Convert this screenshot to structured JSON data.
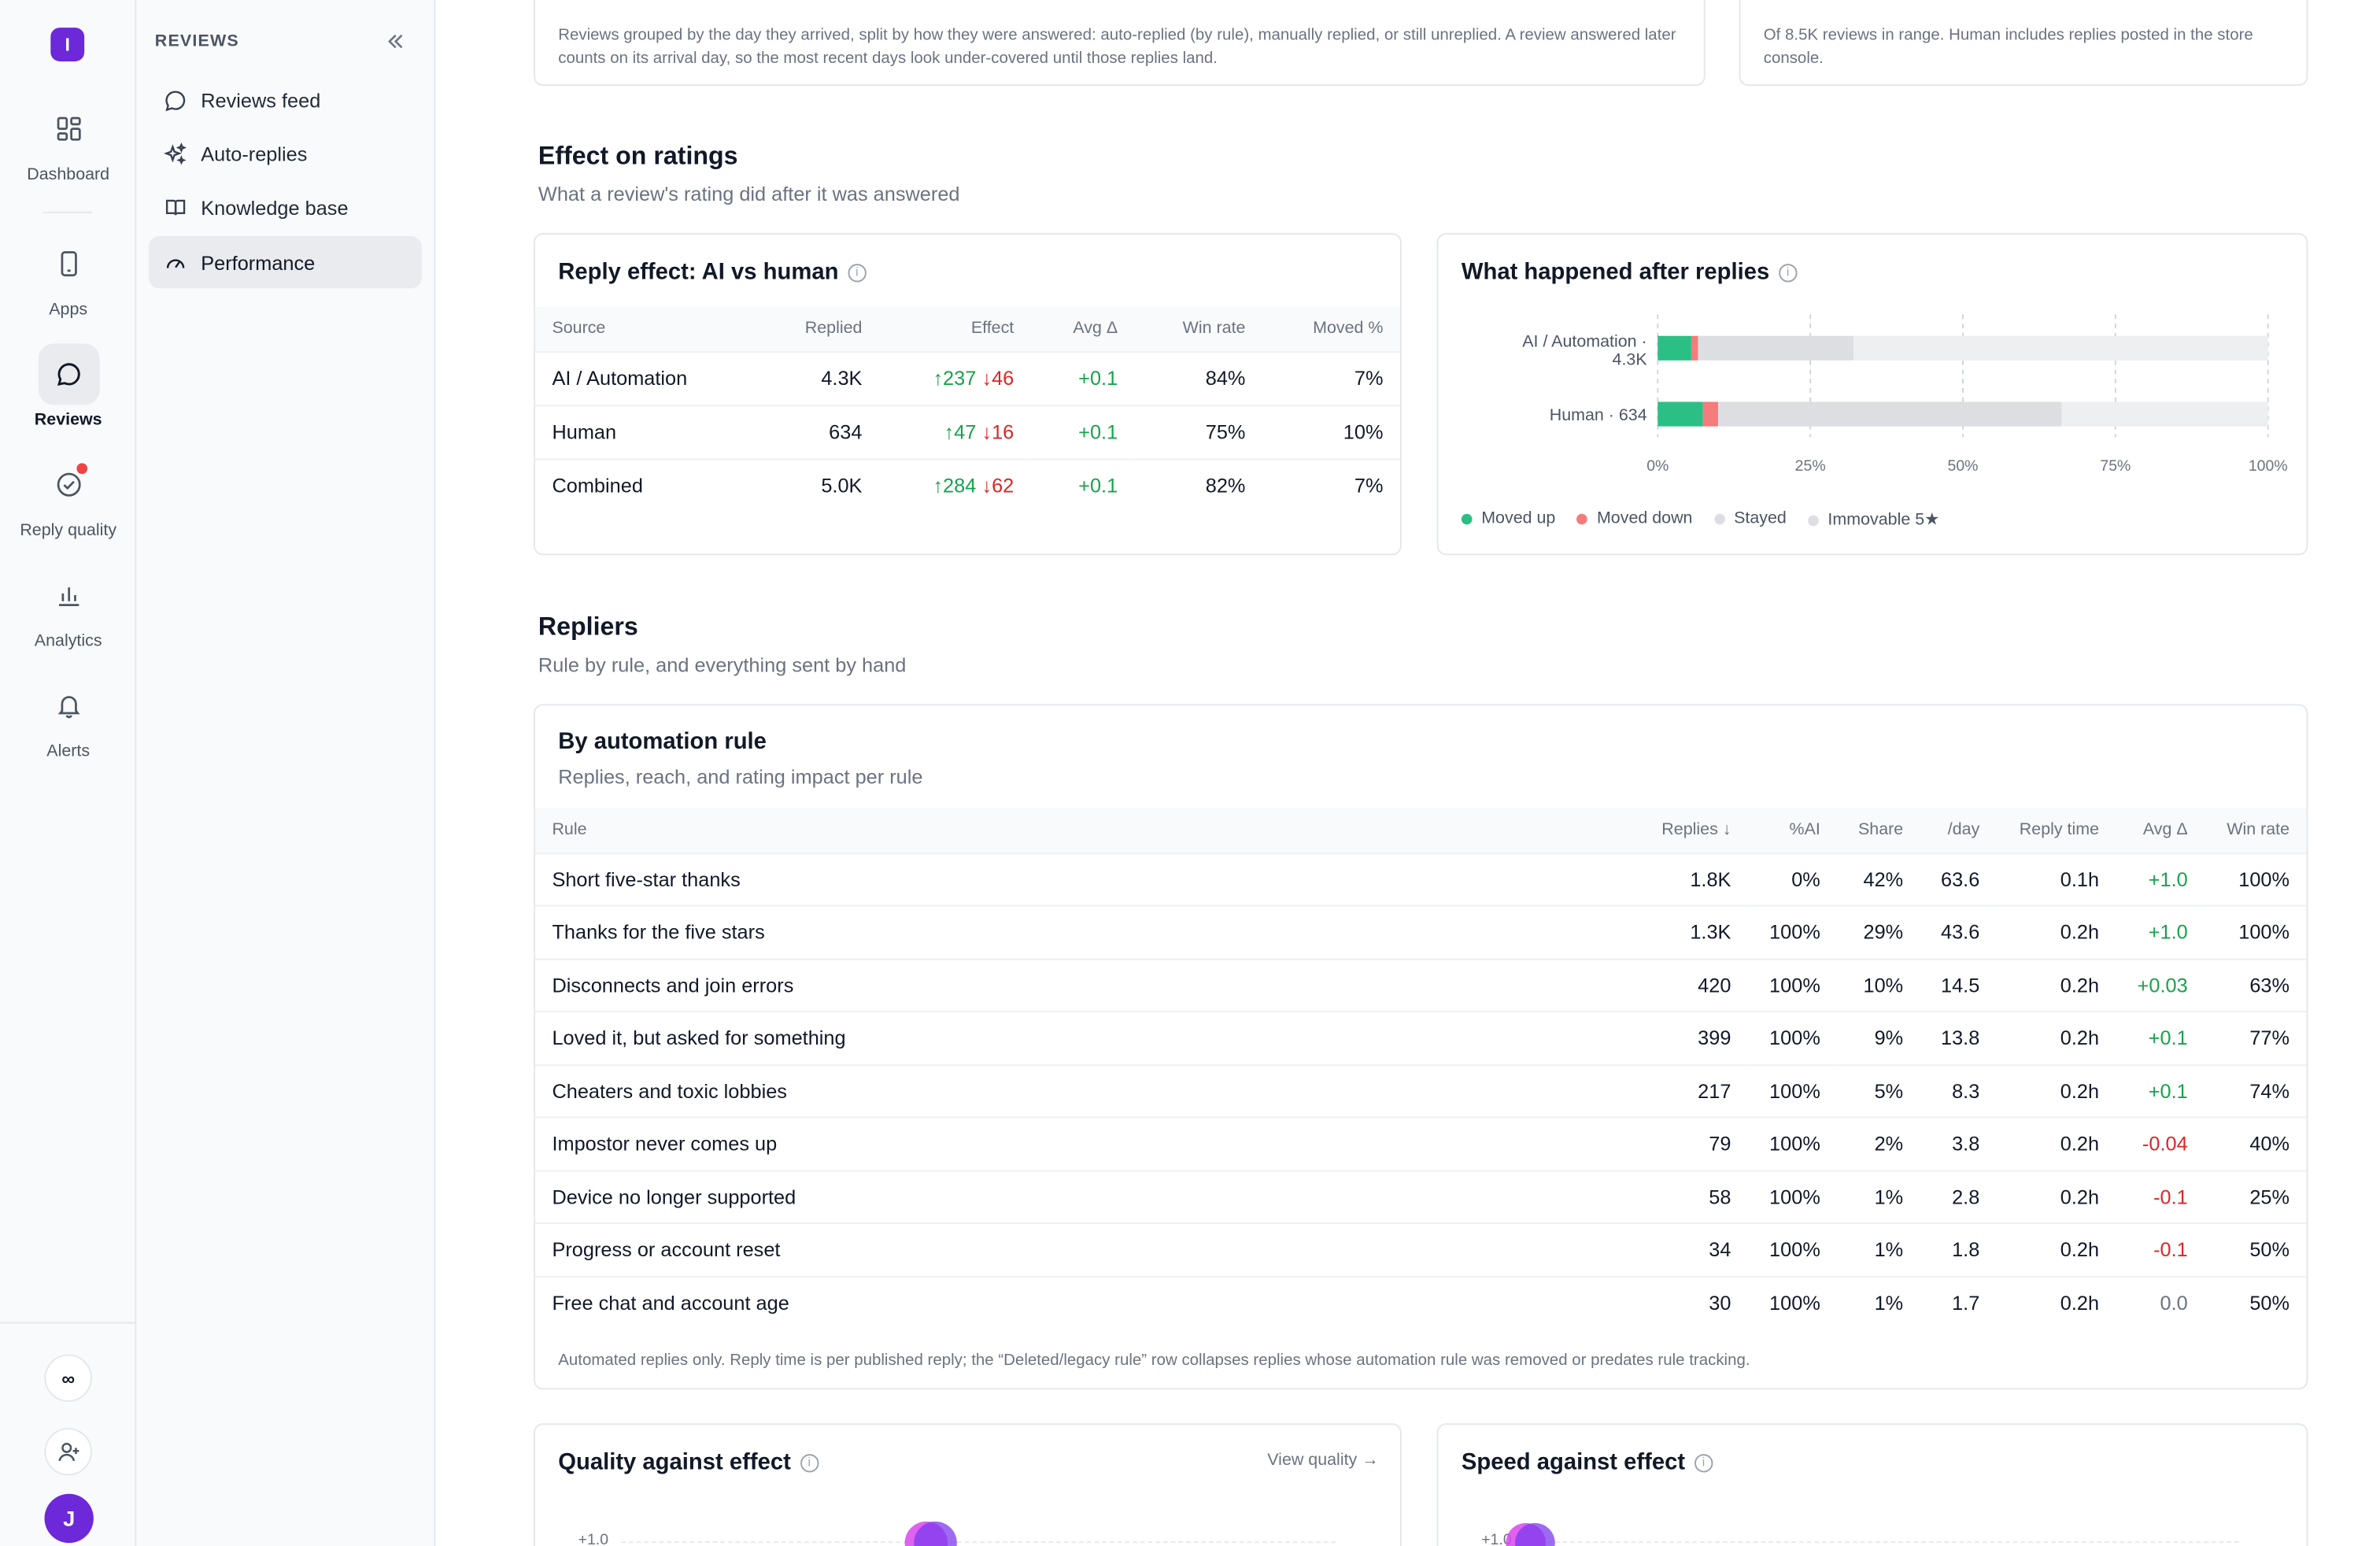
{
  "rail": {
    "logo": "I",
    "items": [
      {
        "label": "Dashboard"
      },
      {
        "label": "Apps"
      },
      {
        "label": "Reviews"
      },
      {
        "label": "Reply quality"
      },
      {
        "label": "Analytics"
      },
      {
        "label": "Alerts"
      }
    ],
    "infinity": "∞",
    "avatar": "J"
  },
  "nav": {
    "heading": "REVIEWS",
    "items": [
      {
        "label": "Reviews feed"
      },
      {
        "label": "Auto-replies"
      },
      {
        "label": "Knowledge base"
      },
      {
        "label": "Performance"
      }
    ]
  },
  "top_cards": {
    "left_caption": "Reviews grouped by the day they arrived, split by how they were answered: auto-replied (by rule), manually replied, or still unreplied. A review answered later counts on its arrival day, so the most recent days look under-covered until those replies land.",
    "right_caption": "Of 8.5K reviews in range. Human includes replies posted in the store console."
  },
  "ratings_section": {
    "title": "Effect on ratings",
    "subtitle": "What a review's rating did after it was answered"
  },
  "reply_effect": {
    "title": "Reply effect: AI vs human",
    "columns": [
      "Source",
      "Replied",
      "Effect",
      "Avg Δ",
      "Win rate",
      "Moved %"
    ],
    "rows": [
      {
        "source": "AI / Automation",
        "replied": "4.3K",
        "up": "↑237",
        "down": "↓46",
        "avg": "+0.1",
        "win": "84%",
        "moved": "7%"
      },
      {
        "source": "Human",
        "replied": "634",
        "up": "↑47",
        "down": "↓16",
        "avg": "+0.1",
        "win": "75%",
        "moved": "10%"
      },
      {
        "source": "Combined",
        "replied": "5.0K",
        "up": "↑284",
        "down": "↓62",
        "avg": "+0.1",
        "win": "82%",
        "moved": "7%"
      }
    ]
  },
  "after_replies": {
    "title": "What happened after replies",
    "bar_label_1a": "AI / Automation ·",
    "bar_label_1b": "4.3K",
    "bar_label_2": "Human · 634",
    "ticks": [
      "0%",
      "25%",
      "50%",
      "75%",
      "100%"
    ],
    "legend": [
      "Moved up",
      "Moved down",
      "Stayed",
      "Immovable 5★"
    ],
    "colors": {
      "up": "#2bbf86",
      "down": "#f47c7c",
      "stayed": "#dcdee2",
      "immovable": "#eeeff1"
    },
    "chart_data": {
      "type": "bar",
      "orientation": "horizontal-stacked",
      "categories": [
        "AI / Automation · 4.3K",
        "Human · 634"
      ],
      "series": [
        {
          "name": "Moved up",
          "values": [
            5.5,
            7.4
          ]
        },
        {
          "name": "Moved down",
          "values": [
            1.1,
            2.5
          ]
        },
        {
          "name": "Stayed",
          "values": [
            25.5,
            56.3
          ]
        },
        {
          "name": "Immovable 5★",
          "values": [
            67.9,
            33.8
          ]
        }
      ],
      "xlim": [
        0,
        100
      ],
      "x_tick_labels": [
        "0%",
        "25%",
        "50%",
        "75%",
        "100%"
      ],
      "grid": true,
      "legend_position": "bottom-left"
    }
  },
  "repliers_section": {
    "title": "Repliers",
    "subtitle": "Rule by rule, and everything sent by hand"
  },
  "by_rule": {
    "title": "By automation rule",
    "subtitle": "Replies, reach, and rating impact per rule",
    "columns": [
      "Rule",
      "Replies ↓",
      "%AI",
      "Share",
      "/day",
      "Reply time",
      "Avg Δ",
      "Win rate"
    ],
    "rows": [
      {
        "rule": "Short five-star thanks",
        "replies": "1.8K",
        "ai": "0%",
        "share": "42%",
        "day": "63.6",
        "time": "0.1h",
        "avg": "+1.0",
        "sign": "pos",
        "win": "100%"
      },
      {
        "rule": "Thanks for the five stars",
        "replies": "1.3K",
        "ai": "100%",
        "share": "29%",
        "day": "43.6",
        "time": "0.2h",
        "avg": "+1.0",
        "sign": "pos",
        "win": "100%"
      },
      {
        "rule": "Disconnects and join errors",
        "replies": "420",
        "ai": "100%",
        "share": "10%",
        "day": "14.5",
        "time": "0.2h",
        "avg": "+0.03",
        "sign": "pos",
        "win": "63%"
      },
      {
        "rule": "Loved it, but asked for something",
        "replies": "399",
        "ai": "100%",
        "share": "9%",
        "day": "13.8",
        "time": "0.2h",
        "avg": "+0.1",
        "sign": "pos",
        "win": "77%"
      },
      {
        "rule": "Cheaters and toxic lobbies",
        "replies": "217",
        "ai": "100%",
        "share": "5%",
        "day": "8.3",
        "time": "0.2h",
        "avg": "+0.1",
        "sign": "pos",
        "win": "74%"
      },
      {
        "rule": "Impostor never comes up",
        "replies": "79",
        "ai": "100%",
        "share": "2%",
        "day": "3.8",
        "time": "0.2h",
        "avg": "-0.04",
        "sign": "neg",
        "win": "40%"
      },
      {
        "rule": "Device no longer supported",
        "replies": "58",
        "ai": "100%",
        "share": "1%",
        "day": "2.8",
        "time": "0.2h",
        "avg": "-0.1",
        "sign": "neg",
        "win": "25%"
      },
      {
        "rule": "Progress or account reset",
        "replies": "34",
        "ai": "100%",
        "share": "1%",
        "day": "1.8",
        "time": "0.2h",
        "avg": "-0.1",
        "sign": "neg",
        "win": "50%"
      },
      {
        "rule": "Free chat and account age",
        "replies": "30",
        "ai": "100%",
        "share": "1%",
        "day": "1.7",
        "time": "0.2h",
        "avg": "0.0",
        "sign": "zero",
        "win": "50%"
      }
    ],
    "footnote": "Automated replies only. Reply time is per published reply; the “Deleted/legacy rule” row collapses replies whose automation rule was removed or predates rule tracking."
  },
  "quality_card": {
    "title": "Quality against effect",
    "link": "View quality →",
    "y_tick": "+1.0"
  },
  "speed_card": {
    "title": "Speed against effect",
    "y_tick": "+1.0"
  }
}
